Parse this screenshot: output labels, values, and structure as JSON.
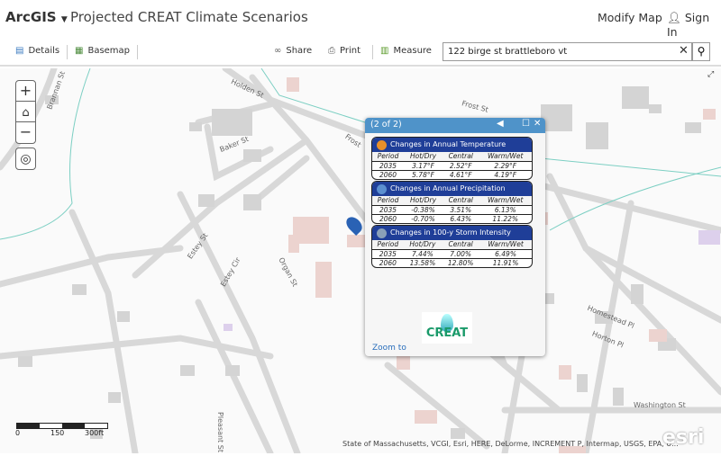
{
  "header": {
    "logo": "ArcGIS",
    "title": "Projected CREAT Climate Scenarios",
    "modify": "Modify Map",
    "signin": "Sign In"
  },
  "toolbar": {
    "details": "Details",
    "basemap": "Basemap",
    "share": "Share",
    "print": "Print",
    "measure": "Measure",
    "search_value": "122 birge st brattleboro vt"
  },
  "map": {
    "streets": [
      "Brannan St",
      "Holden St",
      "Frost St",
      "Baker St",
      "Frost",
      "Estey St",
      "Estey Cir",
      "Organ St",
      "Homestead Pl",
      "Horton Pl",
      "Washington St",
      "Pleasant St"
    ],
    "scale": [
      "0",
      "150",
      "300ft"
    ],
    "attribution": "State of Massachusetts, VCGI, Esri, HERE, DeLorme, INCREMENT P, Intermap, USGS, EPA, U...",
    "esri_logo": "esri"
  },
  "popup": {
    "counter": "(2 of 2)",
    "zoom_to": "Zoom to",
    "logo": "CREAT",
    "cards": [
      {
        "title": "Changes in Annual Temperature",
        "icon": "thermometer-icon",
        "headers": [
          "Period",
          "Hot/Dry",
          "Central",
          "Warm/Wet"
        ],
        "rows": [
          [
            "2035",
            "3.17°F",
            "2.52°F",
            "2.29°F"
          ],
          [
            "2060",
            "5.78°F",
            "4.61°F",
            "4.19°F"
          ]
        ]
      },
      {
        "title": "Changes in Annual Precipitation",
        "icon": "raindrops-icon",
        "headers": [
          "Period",
          "Hot/Dry",
          "Central",
          "Warm/Wet"
        ],
        "rows": [
          [
            "2035",
            "-0.38%",
            "3.51%",
            "6.13%"
          ],
          [
            "2060",
            "-0.70%",
            "6.43%",
            "11.22%"
          ]
        ]
      },
      {
        "title": "Changes in 100-y Storm Intensity",
        "icon": "storm-icon",
        "headers": [
          "Period",
          "Hot/Dry",
          "Central",
          "Warm/Wet"
        ],
        "rows": [
          [
            "2035",
            "7.44%",
            "7.00%",
            "6.49%"
          ],
          [
            "2060",
            "13.58%",
            "12.80%",
            "11.91%"
          ]
        ]
      }
    ]
  },
  "colors": {
    "popup_header": "#4f93c9",
    "card_header": "#1f3e98",
    "link": "#2a6ebb"
  }
}
